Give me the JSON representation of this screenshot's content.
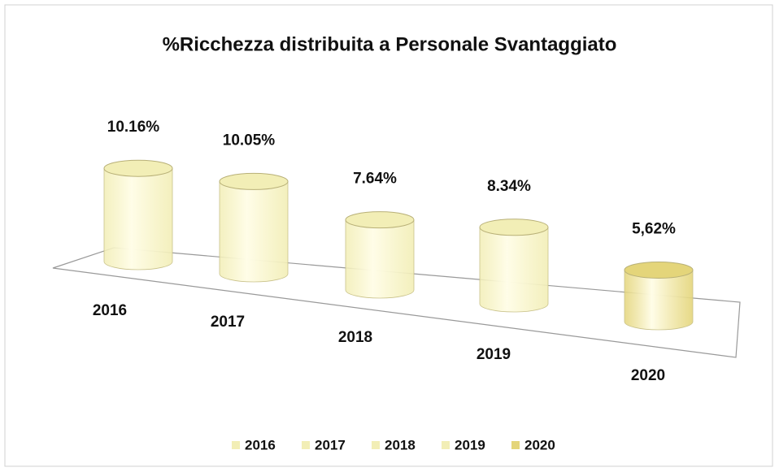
{
  "chart_data": {
    "type": "cylinder-bar",
    "title": "%Ricchezza distribuita a Personale Svantaggiato",
    "categories": [
      "2016",
      "2017",
      "2018",
      "2019",
      "2020"
    ],
    "values": [
      10.16,
      10.05,
      7.64,
      8.34,
      5.62
    ],
    "value_labels": [
      "10.16%",
      "10.05%",
      "7.64%",
      "8.34%",
      "5,62%"
    ],
    "colors": [
      "#f2eeb6",
      "#f2eeb6",
      "#f2eeb6",
      "#f2eeb6",
      "#e4d57a"
    ],
    "legend": "bottom"
  }
}
